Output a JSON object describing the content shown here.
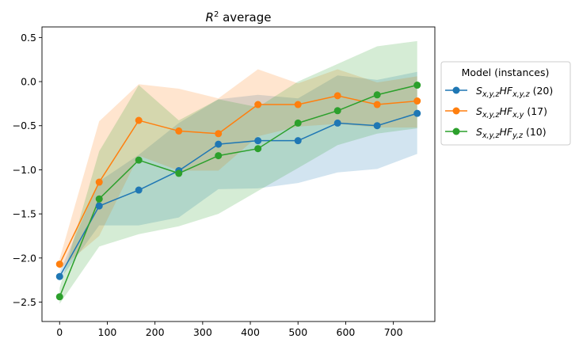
{
  "chart_data": {
    "type": "line",
    "title": "R² average",
    "title_parts": {
      "base": "R",
      "sup": "2",
      "rest": " average"
    },
    "xlabel": "",
    "ylabel": "",
    "xlim": [
      -37,
      787
    ],
    "ylim": [
      -2.72,
      0.62
    ],
    "x_ticks": [
      0,
      100,
      200,
      300,
      400,
      500,
      600,
      700
    ],
    "y_ticks": [
      -2.5,
      -2.0,
      -1.5,
      -1.0,
      -0.5,
      0.0,
      0.5
    ],
    "y_tick_labels": [
      "−2.5",
      "−2.0",
      "−1.5",
      "−1.0",
      "−0.5",
      "0.0",
      "0.5"
    ],
    "x": [
      0,
      83,
      166,
      250,
      333,
      416,
      500,
      583,
      666,
      750
    ],
    "grid": false,
    "legend": {
      "title": "Model (instances)",
      "position": "right-outside",
      "entries": [
        {
          "S": "S",
          "sub1": "x,y,z",
          "HF": "HF",
          "sub2": "x,y,z",
          "count": " (20)"
        },
        {
          "S": "S",
          "sub1": "x,y,z",
          "HF": "HF",
          "sub2": "x,y",
          "count": " (17)"
        },
        {
          "S": "S",
          "sub1": "x,y,z",
          "HF": "HF",
          "sub2": "y,z",
          "count": " (10)"
        }
      ]
    },
    "series": [
      {
        "name": "S_{x,y,z}HF_{x,y,z} (20)",
        "color": "#1f77b4",
        "values": [
          -2.21,
          -1.41,
          -1.23,
          -1.01,
          -0.71,
          -0.67,
          -0.67,
          -0.47,
          -0.5,
          -0.36
        ],
        "lower": [
          -2.25,
          -1.63,
          -1.63,
          -1.54,
          -1.22,
          -1.21,
          -1.15,
          -1.03,
          -0.99,
          -0.82
        ],
        "upper": [
          -2.16,
          -1.13,
          -0.83,
          -0.47,
          -0.2,
          -0.15,
          -0.19,
          0.07,
          0.02,
          0.11
        ]
      },
      {
        "name": "S_{x,y,z}HF_{x,y} (17)",
        "color": "#ff7f0e",
        "values": [
          -2.07,
          -1.14,
          -0.44,
          -0.56,
          -0.59,
          -0.26,
          -0.26,
          -0.16,
          -0.26,
          -0.22
        ],
        "lower": [
          -2.13,
          -1.75,
          -0.84,
          -1.01,
          -1.01,
          -0.62,
          -0.51,
          -0.48,
          -0.52,
          -0.52
        ],
        "upper": [
          -2.01,
          -0.45,
          -0.03,
          -0.08,
          -0.19,
          0.14,
          -0.02,
          0.14,
          -0.01,
          0.06
        ]
      },
      {
        "name": "S_{x,y,z}HF_{y,z} (10)",
        "color": "#2ca02c",
        "values": [
          -2.44,
          -1.33,
          -0.89,
          -1.04,
          -0.84,
          -0.76,
          -0.47,
          -0.33,
          -0.15,
          -0.04
        ],
        "lower": [
          -2.52,
          -1.87,
          -1.73,
          -1.64,
          -1.5,
          -1.24,
          -0.98,
          -0.72,
          -0.59,
          -0.53
        ],
        "upper": [
          -2.34,
          -0.79,
          -0.04,
          -0.44,
          -0.2,
          -0.29,
          0.0,
          0.2,
          0.4,
          0.46
        ]
      }
    ]
  }
}
